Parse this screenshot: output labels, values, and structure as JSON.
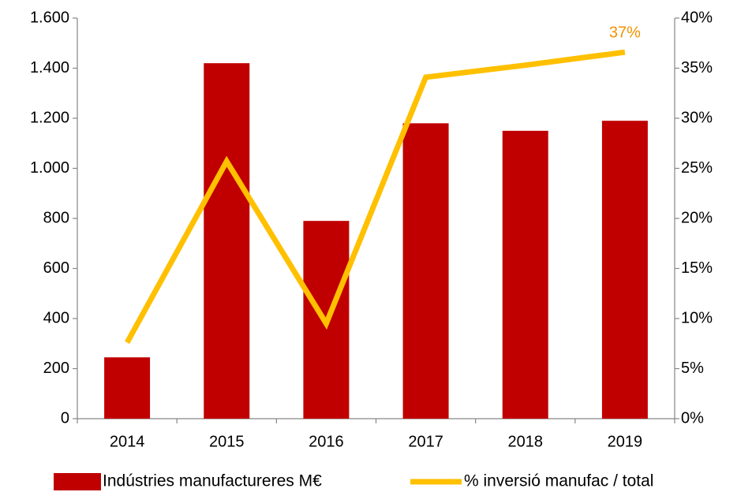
{
  "chart_data": {
    "type": "bar_line",
    "categories": [
      "2014",
      "2015",
      "2016",
      "2017",
      "2018",
      "2019"
    ],
    "series": [
      {
        "name": "Indústries manufactureres M€",
        "type": "bar",
        "color": "#c00000",
        "values": [
          245,
          1420,
          790,
          1180,
          1150,
          1190
        ]
      },
      {
        "name": "% inversió manufac / total",
        "type": "line",
        "axis": "y2",
        "color": "#ffc000",
        "values": [
          7.6,
          25.7,
          9.5,
          34.1,
          35.3,
          36.6
        ],
        "value_labels": [
          null,
          null,
          null,
          null,
          null,
          "37%"
        ],
        "label_color": "#f39200"
      }
    ],
    "ylim": [
      0,
      1600
    ],
    "yticks": [
      0,
      200,
      400,
      600,
      800,
      {
        "value": 1000,
        "label": "1.000"
      },
      {
        "value": 1200,
        "label": "1.200"
      },
      {
        "value": 1400,
        "label": "1.400"
      },
      {
        "value": 1600,
        "label": "1.600"
      }
    ],
    "y2lim": [
      0,
      40
    ],
    "y2ticks": [
      {
        "value": 0,
        "label": "0%"
      },
      {
        "value": 5,
        "label": "5%"
      },
      {
        "value": 10,
        "label": "10%"
      },
      {
        "value": 15,
        "label": "15%"
      },
      {
        "value": 20,
        "label": "20%"
      },
      {
        "value": 25,
        "label": "25%"
      },
      {
        "value": 30,
        "label": "30%"
      },
      {
        "value": 35,
        "label": "35%"
      },
      {
        "value": 40,
        "label": "40%"
      }
    ],
    "grid": false,
    "legend": "bottom"
  }
}
